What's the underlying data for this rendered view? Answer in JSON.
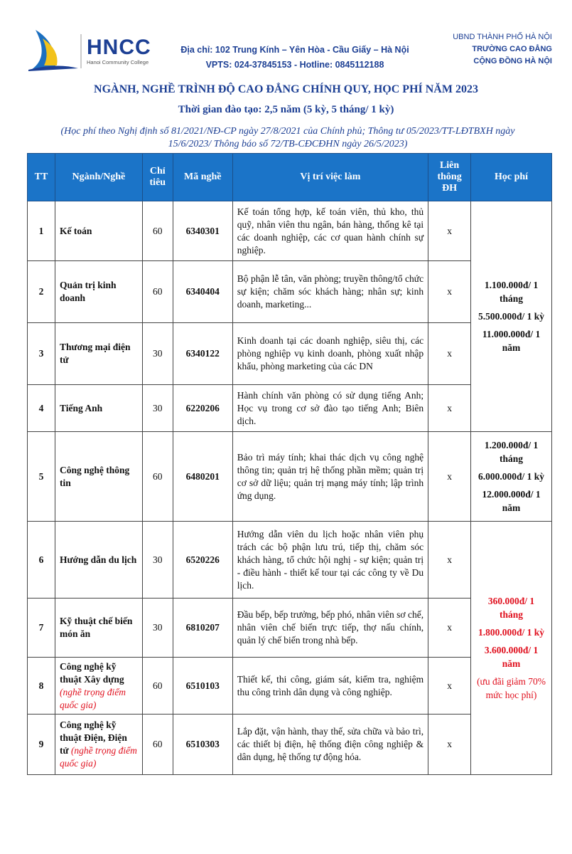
{
  "header": {
    "logo_text": "HNCC",
    "logo_subtitle": "Hanoi Community College",
    "address": "Địa chỉ: 102 Trung Kính – Yên Hòa - Cầu Giấy – Hà Nội",
    "phone": "VPTS: 024-37845153 - Hotline: 0845112188",
    "org_line1": "UBND THÀNH PHỐ HÀ NỘI",
    "org_line2": "TRƯỜNG CAO ĐẲNG",
    "org_line3": "CỘNG ĐỒNG HÀ NỘI"
  },
  "title": "NGÀNH, NGHỀ TRÌNH ĐỘ CAO ĐẲNG CHÍNH QUY, HỌC PHÍ NĂM 2023",
  "subtitle": "Thời gian đào tạo: 2,5 năm (5 kỳ, 5 tháng/ 1 kỳ)",
  "note": "(Học phí theo Nghị định số 81/2021/NĐ-CP ngày 27/8/2021 của Chính phủ; Thông tư 05/2023/TT-LĐTBXH ngày 15/6/2023/ Thông báo số 72/TB-CĐCĐHN ngày 26/5/2023)",
  "table": {
    "headers": [
      "TT",
      "Ngành/Nghề",
      "Chỉ tiêu",
      "Mã nghề",
      "Vị trí việc làm",
      "Liên thông ĐH",
      "Học phí"
    ],
    "rows": [
      {
        "tt": "1",
        "name": "Kế toán",
        "note": "",
        "quota": "60",
        "code": "6340301",
        "jobs": "Kế toán tổng hợp, kế toán viên, thủ kho, thủ quỹ, nhân viên thu ngân, bán hàng, thống kê tại các doanh nghiệp, các cơ quan hành chính sự nghiệp.",
        "link": "x"
      },
      {
        "tt": "2",
        "name": "Quản trị kinh doanh",
        "note": "",
        "quota": "60",
        "code": "6340404",
        "jobs": "Bộ phận lễ tân, văn phòng; truyền thông/tổ chức sự kiện; chăm sóc khách hàng; nhân sự; kinh doanh, marketing...",
        "link": "x"
      },
      {
        "tt": "3",
        "name": "Thương mại điện tử",
        "note": "",
        "quota": "30",
        "code": "6340122",
        "jobs": "Kinh doanh tại các doanh nghiệp, siêu thị, các phòng nghiệp vụ kinh doanh, phòng xuất nhập khẩu, phòng marketing của các DN",
        "link": "x"
      },
      {
        "tt": "4",
        "name": "Tiếng Anh",
        "note": "",
        "quota": "30",
        "code": "6220206",
        "jobs": "Hành chính văn phòng có sử dụng tiếng Anh; Học vụ trong cơ sở đào tạo tiếng Anh; Biên dịch.",
        "link": "x"
      },
      {
        "tt": "5",
        "name": "Công nghệ thông tin",
        "note": "",
        "quota": "60",
        "code": "6480201",
        "jobs": "Bảo trì máy tính; khai thác dịch vụ công nghệ thông tin; quản trị hệ thống phần mềm; quản trị cơ sở dữ liệu; quản trị mạng máy tính; lập trình ứng dụng.",
        "link": "x"
      },
      {
        "tt": "6",
        "name": "Hướng dẫn du lịch",
        "note": "",
        "quota": "30",
        "code": "6520226",
        "jobs": "Hướng dẫn viên du lịch hoặc nhân viên phụ trách các bộ phận lưu trú, tiếp thị, chăm sóc khách hàng, tổ chức hội nghị - sự kiện; quản trị - điều hành - thiết kế tour tại các công ty về Du lịch.",
        "link": "x"
      },
      {
        "tt": "7",
        "name": "Kỹ thuật chế biến món ăn",
        "note": "",
        "quota": "30",
        "code": "6810207",
        "jobs": "Đầu bếp, bếp trưởng, bếp phó, nhân viên sơ chế, nhân viên chế biến trực tiếp, thợ nấu chính, quản lý chế biến trong nhà bếp.",
        "link": "x"
      },
      {
        "tt": "8",
        "name": "Công nghệ kỹ thuật Xây dựng",
        "note": "(nghề trọng điểm quốc gia)",
        "quota": "60",
        "code": "6510103",
        "jobs": "Thiết kế, thi công, giám sát, kiểm tra, nghiệm thu công trình dân dụng và công nghiệp.",
        "link": "x"
      },
      {
        "tt": "9",
        "name": "Công nghệ kỹ thuật Điện, Điện tử",
        "note": "(nghề trọng điểm quốc gia)",
        "quota": "60",
        "code": "6510303",
        "jobs": "Lắp đặt, vận hành, thay thế, sửa chữa và bảo trì, các thiết bị điện, hệ thống điện công nghiệp & dân dụng, hệ thống tự động hóa.",
        "link": "x"
      }
    ],
    "fees": [
      {
        "month": "1.100.000đ/ 1 tháng",
        "term": "5.500.000đ/ 1 kỳ",
        "year": "11.000.000đ/ 1 năm",
        "note": ""
      },
      {
        "month": "1.200.000đ/ 1 tháng",
        "term": "6.000.000đ/ 1 kỳ",
        "year": "12.000.000đ/ 1 năm",
        "note": ""
      },
      {
        "month": "360.000đ/ 1 tháng",
        "term": "1.800.000đ/ 1 kỳ",
        "year": "3.600.000đ/ 1 năm",
        "note": "(ưu đãi giảm 70% mức học phí)"
      }
    ]
  },
  "colors": {
    "brand": "#1c3f94",
    "header_bg": "#1b74c8",
    "highlight": "#e0101e"
  }
}
